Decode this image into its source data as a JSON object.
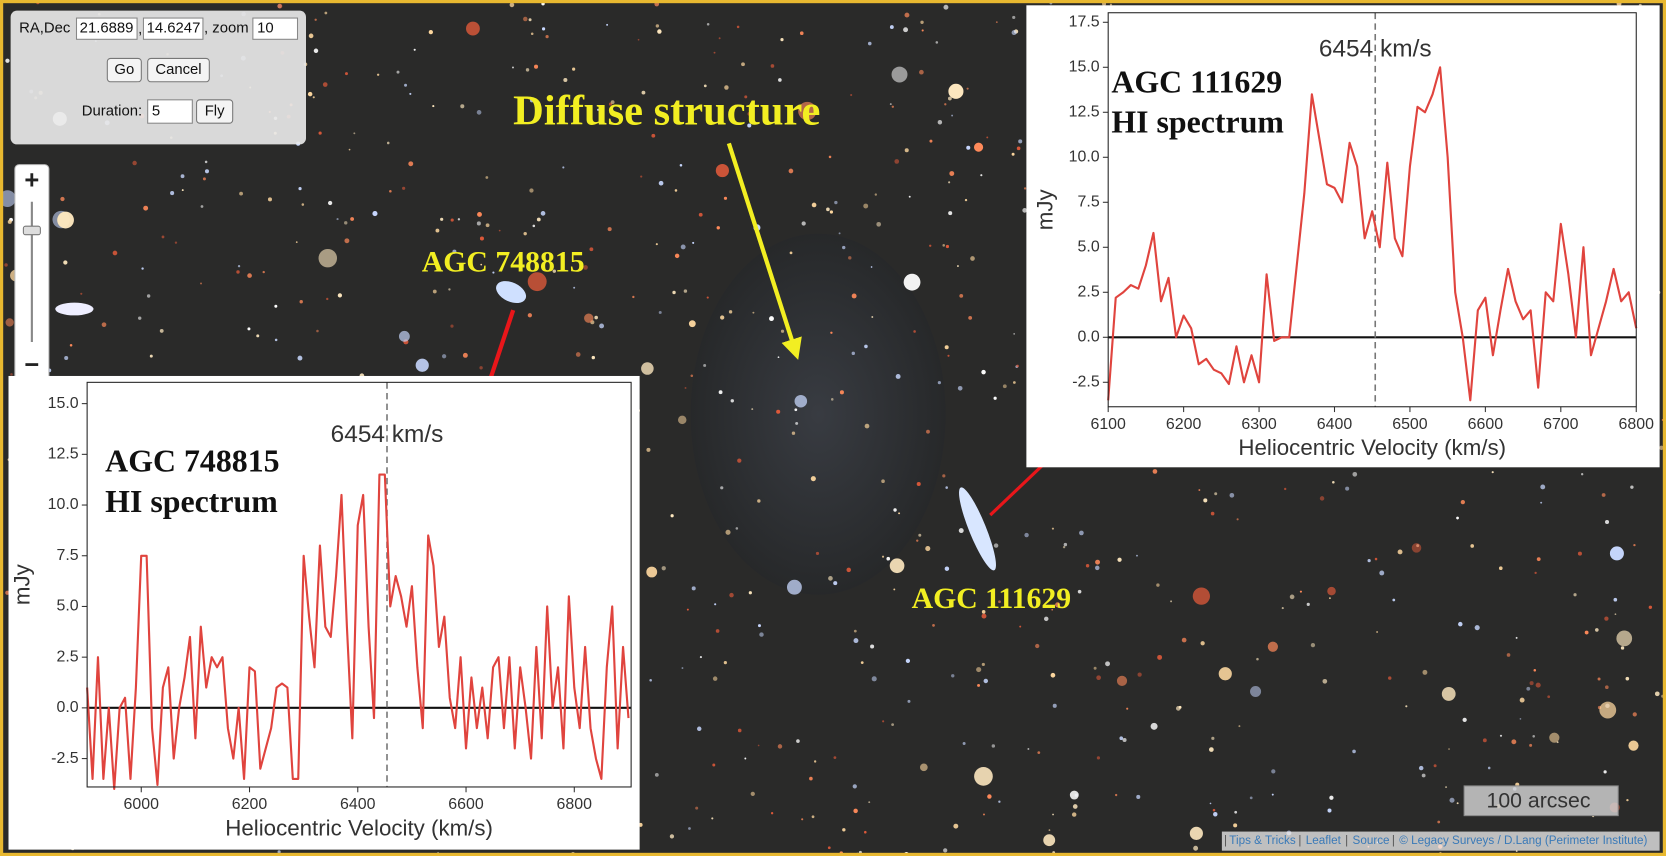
{
  "controls": {
    "coord_label": "RA,Dec",
    "ra": "21.6889",
    "sep": ",",
    "dec": "14.6247",
    "zoom_label": ", zoom",
    "zoom": "10",
    "go": "Go",
    "cancel": "Cancel",
    "duration_label": "Duration:",
    "duration": "5",
    "fly": "Fly"
  },
  "zoom_control": {
    "zoom_in": "+",
    "zoom_out": "−"
  },
  "annotations": {
    "diffuse": "Diffuse structure",
    "galaxy_1": "AGC 748815",
    "galaxy_2": "AGC 111629"
  },
  "scale_bar": "100 arcsec",
  "attribution": {
    "links": [
      "Tips & Tricks",
      "Leaflet",
      "Source",
      "© Legacy Surveys / D.Lang (Perimeter Institute)"
    ],
    "separator": "|"
  },
  "chart_data": [
    {
      "type": "line",
      "annotation": [
        "AGC 111629",
        "HI spectrum"
      ],
      "xlabel": "Heliocentric Velocity (km/s)",
      "ylabel": "mJy",
      "x": [
        6100,
        6110,
        6120,
        6130,
        6140,
        6150,
        6160,
        6170,
        6180,
        6190,
        6200,
        6210,
        6220,
        6230,
        6240,
        6250,
        6260,
        6270,
        6280,
        6290,
        6300,
        6310,
        6320,
        6330,
        6340,
        6350,
        6360,
        6370,
        6380,
        6390,
        6400,
        6410,
        6420,
        6430,
        6440,
        6450,
        6460,
        6470,
        6480,
        6490,
        6500,
        6510,
        6520,
        6530,
        6540,
        6550,
        6560,
        6570,
        6580,
        6590,
        6600,
        6610,
        6620,
        6630,
        6640,
        6650,
        6660,
        6670,
        6680,
        6690,
        6700,
        6710,
        6720,
        6730,
        6740,
        6750,
        6760,
        6770,
        6780,
        6790,
        6800
      ],
      "series": [
        {
          "color": "#e0443e",
          "values": [
            -3.5,
            2.2,
            2.5,
            2.9,
            2.7,
            4.0,
            5.8,
            2.0,
            3.3,
            0.0,
            1.2,
            0.5,
            -1.5,
            -1.2,
            -1.8,
            -2.0,
            -2.6,
            -0.5,
            -2.5,
            -1.0,
            -2.5,
            3.5,
            -0.2,
            0.0,
            0.0,
            4.0,
            8.0,
            13.5,
            11.0,
            8.5,
            8.3,
            7.5,
            10.8,
            9.5,
            5.5,
            7.0,
            5.0,
            9.7,
            5.5,
            4.5,
            9.5,
            12.8,
            12.5,
            13.5,
            15.0,
            10.0,
            2.5,
            0.0,
            -3.5,
            1.5,
            2.2,
            -1.0,
            1.5,
            3.8,
            2.0,
            1.0,
            1.5,
            -2.8,
            2.5,
            2.0,
            6.3,
            3.5,
            0.0,
            5.0,
            -1.0,
            0.5,
            2.0,
            3.8,
            2.0,
            2.5,
            0.5
          ]
        }
      ],
      "vline": {
        "value": 6454,
        "label": "6454 km/s"
      },
      "hline": 0,
      "xlim": [
        6100,
        6800
      ],
      "xticks": [
        6100,
        6200,
        6300,
        6400,
        6500,
        6600,
        6700,
        6800
      ],
      "ylim": [
        -3.86,
        18.03
      ],
      "yticks": [
        -2.5,
        {
          "value": 0,
          "label": "0.0"
        },
        2.5,
        {
          "value": 5,
          "label": "5.0"
        },
        7.5,
        {
          "value": 10,
          "label": "10.0"
        },
        12.5,
        {
          "value": 15,
          "label": "15.0"
        },
        17.5
      ]
    },
    {
      "type": "line",
      "annotation": [
        "AGC 748815",
        "HI spectrum"
      ],
      "xlabel": "Heliocentric Velocity (km/s)",
      "ylabel": "mJy",
      "x": [
        5900,
        5910,
        5920,
        5930,
        5940,
        5950,
        5960,
        5970,
        5980,
        5990,
        6000,
        6010,
        6020,
        6030,
        6040,
        6050,
        6060,
        6070,
        6080,
        6090,
        6100,
        6110,
        6120,
        6130,
        6140,
        6150,
        6160,
        6170,
        6180,
        6190,
        6200,
        6210,
        6220,
        6230,
        6240,
        6250,
        6260,
        6270,
        6280,
        6290,
        6300,
        6310,
        6320,
        6330,
        6340,
        6350,
        6360,
        6370,
        6380,
        6390,
        6400,
        6410,
        6420,
        6430,
        6440,
        6450,
        6460,
        6470,
        6480,
        6490,
        6500,
        6510,
        6520,
        6530,
        6540,
        6550,
        6560,
        6570,
        6580,
        6590,
        6600,
        6610,
        6620,
        6630,
        6640,
        6650,
        6660,
        6670,
        6680,
        6690,
        6700,
        6710,
        6720,
        6730,
        6740,
        6750,
        6760,
        6770,
        6780,
        6790,
        6800,
        6810,
        6820,
        6830,
        6840,
        6850,
        6860,
        6870,
        6880,
        6890,
        6900
      ],
      "series": [
        {
          "color": "#e0443e",
          "values": [
            1.0,
            -3.5,
            2.5,
            -3.5,
            0.0,
            -4.0,
            0.0,
            0.5,
            -3.5,
            1.0,
            7.5,
            7.5,
            -1.0,
            -3.8,
            1.0,
            2.0,
            -2.5,
            0.0,
            1.5,
            3.5,
            -1.5,
            4.0,
            1.0,
            2.5,
            2.0,
            2.5,
            -1.0,
            -2.5,
            0.0,
            -3.5,
            2.0,
            1.8,
            -3.0,
            -2.0,
            -1.0,
            1.0,
            1.2,
            1.0,
            -3.5,
            -3.5,
            7.5,
            4.5,
            2.0,
            8.0,
            4.0,
            3.5,
            6.5,
            10.5,
            4.0,
            -1.5,
            9.0,
            10.5,
            4.0,
            -0.5,
            11.5,
            11.5,
            5.0,
            6.5,
            5.5,
            4.0,
            6.0,
            2.0,
            -1.0,
            8.5,
            7.0,
            3.0,
            4.5,
            0.5,
            -1.0,
            2.5,
            -2.0,
            1.5,
            -1.0,
            1.0,
            -1.5,
            2.0,
            2.5,
            -1.0,
            2.5,
            -2.0,
            2.0,
            0.0,
            -2.5,
            3.0,
            -1.5,
            5.0,
            0.0,
            2.0,
            -2.0,
            5.5,
            1.0,
            -1.0,
            3.0,
            -1.0,
            -2.5,
            -3.5,
            2.0,
            5.0,
            -2.0,
            3.0,
            -0.5
          ]
        }
      ],
      "vline": {
        "value": 6454,
        "label": "6454 km/s"
      },
      "hline": 0,
      "xlim": [
        5900,
        6905
      ],
      "xticks": [
        6000,
        6200,
        6400,
        6600,
        6800
      ],
      "ylim": [
        -3.9,
        16.05
      ],
      "yticks": [
        -2.5,
        {
          "value": 0,
          "label": "0.0"
        },
        2.5,
        {
          "value": 5,
          "label": "5.0"
        },
        7.5,
        {
          "value": 10,
          "label": "10.0"
        },
        12.5,
        {
          "value": 15,
          "label": "15.0"
        }
      ]
    }
  ]
}
